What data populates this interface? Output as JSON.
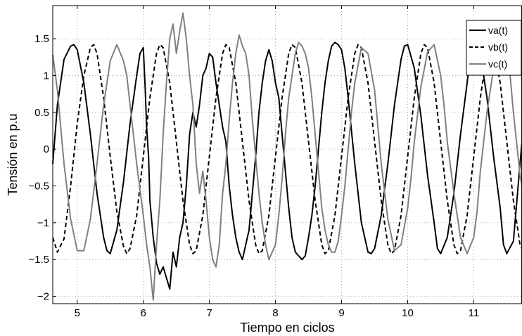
{
  "chart_data": {
    "type": "line",
    "title": "",
    "xlabel": "Tiempo en ciclos",
    "ylabel": "Tensión en p.u",
    "xlim": [
      4.63,
      11.73
    ],
    "ylim": [
      -2.1,
      1.95
    ],
    "xticks": [
      5,
      6,
      7,
      8,
      9,
      10,
      11
    ],
    "xtick_labels": [
      "5",
      "6",
      "7",
      "8",
      "9",
      "10",
      "11"
    ],
    "yticks": [
      -2,
      -1.5,
      -1,
      -0.5,
      0,
      0.5,
      1,
      1.5
    ],
    "ytick_labels": [
      "−2",
      "−1.5",
      "−1",
      "−0.5",
      "0",
      "0.5",
      "1",
      "1.5"
    ],
    "grid": true,
    "legend_position": "top-right",
    "series": [
      {
        "name": "va(t)",
        "color": "#000000",
        "style": "solid",
        "x": [
          4.63,
          4.7,
          4.8,
          4.9,
          4.95,
          5.0,
          5.1,
          5.2,
          5.3,
          5.4,
          5.45,
          5.5,
          5.6,
          5.7,
          5.8,
          5.9,
          5.95,
          6.0,
          6.03,
          6.05,
          6.08,
          6.1,
          6.15,
          6.2,
          6.25,
          6.3,
          6.35,
          6.4,
          6.45,
          6.5,
          6.55,
          6.6,
          6.65,
          6.7,
          6.75,
          6.8,
          6.85,
          6.9,
          6.95,
          7.0,
          7.05,
          7.1,
          7.15,
          7.2,
          7.25,
          7.3,
          7.35,
          7.4,
          7.45,
          7.5,
          7.55,
          7.6,
          7.65,
          7.7,
          7.75,
          7.8,
          7.85,
          7.9,
          7.95,
          8.0,
          8.05,
          8.1,
          8.15,
          8.2,
          8.25,
          8.3,
          8.35,
          8.4,
          8.45,
          8.5,
          8.55,
          8.6,
          8.65,
          8.7,
          8.75,
          8.8,
          8.85,
          8.9,
          8.95,
          9.0,
          9.05,
          9.1,
          9.2,
          9.3,
          9.4,
          9.45,
          9.5,
          9.6,
          9.7,
          9.8,
          9.9,
          9.95,
          10.0,
          10.1,
          10.2,
          10.3,
          10.4,
          10.45,
          10.5,
          10.6,
          10.7,
          10.8,
          10.9,
          10.95,
          11.0,
          11.1,
          11.2,
          11.3,
          11.4,
          11.45,
          11.5,
          11.6,
          11.7,
          11.73
        ],
        "values": [
          -0.2,
          0.6,
          1.22,
          1.4,
          1.42,
          1.35,
          0.9,
          0.2,
          -0.6,
          -1.2,
          -1.38,
          -1.42,
          -1.1,
          -0.45,
          0.35,
          1.0,
          1.3,
          1.38,
          0.8,
          0.3,
          -0.1,
          -0.7,
          -1.2,
          -1.55,
          -1.7,
          -1.6,
          -1.75,
          -1.9,
          -1.4,
          -1.6,
          -1.2,
          -1.0,
          -0.5,
          0.2,
          0.5,
          0.3,
          0.6,
          1.0,
          1.1,
          1.3,
          1.25,
          0.9,
          0.6,
          0.3,
          0.1,
          -0.5,
          -0.9,
          -1.2,
          -1.4,
          -1.5,
          -1.3,
          -1.1,
          -0.6,
          -0.1,
          0.5,
          0.9,
          1.2,
          1.35,
          1.2,
          0.9,
          0.7,
          0.2,
          -0.3,
          -0.8,
          -1.2,
          -1.4,
          -1.45,
          -1.5,
          -1.45,
          -1.2,
          -0.9,
          -0.5,
          0.0,
          0.5,
          0.9,
          1.2,
          1.4,
          1.45,
          1.42,
          1.35,
          1.1,
          0.7,
          -0.2,
          -1.0,
          -1.4,
          -1.42,
          -1.35,
          -0.9,
          -0.2,
          0.6,
          1.22,
          1.4,
          1.42,
          1.1,
          0.45,
          -0.35,
          -1.0,
          -1.35,
          -1.42,
          -1.2,
          -0.6,
          0.2,
          0.9,
          1.3,
          1.42,
          1.3,
          0.7,
          -0.1,
          -0.8,
          -1.3,
          -1.42,
          -1.25,
          -0.2,
          0.1
        ]
      },
      {
        "name": "vb(t)",
        "color": "#000000",
        "style": "dashed",
        "x": [
          4.63,
          4.7,
          4.8,
          4.9,
          5.0,
          5.1,
          5.2,
          5.25,
          5.3,
          5.4,
          5.5,
          5.6,
          5.7,
          5.75,
          5.8,
          5.9,
          6.0,
          6.1,
          6.2,
          6.25,
          6.3,
          6.4,
          6.5,
          6.6,
          6.7,
          6.75,
          6.8,
          6.9,
          7.0,
          7.1,
          7.2,
          7.25,
          7.3,
          7.4,
          7.5,
          7.6,
          7.7,
          7.75,
          7.8,
          7.9,
          8.0,
          8.1,
          8.2,
          8.25,
          8.3,
          8.4,
          8.5,
          8.6,
          8.7,
          8.75,
          8.8,
          8.9,
          9.0,
          9.1,
          9.2,
          9.25,
          9.3,
          9.4,
          9.5,
          9.6,
          9.7,
          9.75,
          9.8,
          9.9,
          10.0,
          10.1,
          10.2,
          10.25,
          10.3,
          10.4,
          10.5,
          10.6,
          10.7,
          10.75,
          10.8,
          10.9,
          11.0,
          11.1,
          11.2,
          11.25,
          11.3,
          11.4,
          11.5,
          11.6,
          11.7,
          11.73
        ],
        "values": [
          -1.2,
          -1.4,
          -1.22,
          -0.5,
          0.35,
          1.0,
          1.38,
          1.42,
          1.3,
          0.7,
          -0.1,
          -0.85,
          -1.32,
          -1.42,
          -1.35,
          -0.9,
          -0.1,
          0.7,
          1.3,
          1.42,
          1.38,
          0.9,
          0.1,
          -0.7,
          -1.3,
          -1.42,
          -1.38,
          -0.9,
          -0.1,
          0.7,
          1.3,
          1.42,
          1.38,
          0.9,
          0.1,
          -0.7,
          -1.3,
          -1.42,
          -1.38,
          -0.9,
          -0.1,
          0.7,
          1.3,
          1.42,
          1.38,
          0.9,
          0.1,
          -0.7,
          -1.3,
          -1.42,
          -1.38,
          -0.9,
          -0.1,
          0.7,
          1.3,
          1.42,
          1.38,
          0.9,
          0.1,
          -0.7,
          -1.3,
          -1.42,
          -1.38,
          -0.9,
          -0.1,
          0.7,
          1.3,
          1.42,
          1.38,
          0.9,
          0.1,
          -0.7,
          -1.3,
          -1.42,
          -1.38,
          -0.9,
          -0.1,
          0.7,
          1.3,
          1.42,
          1.38,
          0.9,
          0.1,
          -0.7,
          -1.3,
          -1.35
        ]
      },
      {
        "name": "vc(t)",
        "color": "#808080",
        "style": "solid",
        "x": [
          4.63,
          4.7,
          4.8,
          4.9,
          5.0,
          5.1,
          5.2,
          5.3,
          5.4,
          5.5,
          5.6,
          5.7,
          5.75,
          5.8,
          5.9,
          6.0,
          6.05,
          6.1,
          6.15,
          6.2,
          6.25,
          6.3,
          6.35,
          6.4,
          6.45,
          6.5,
          6.55,
          6.6,
          6.65,
          6.7,
          6.75,
          6.8,
          6.85,
          6.9,
          6.95,
          7.0,
          7.05,
          7.1,
          7.15,
          7.2,
          7.25,
          7.3,
          7.35,
          7.4,
          7.45,
          7.5,
          7.55,
          7.6,
          7.65,
          7.7,
          7.75,
          7.8,
          7.85,
          7.9,
          7.95,
          8.0,
          8.05,
          8.1,
          8.15,
          8.2,
          8.25,
          8.3,
          8.35,
          8.4,
          8.45,
          8.5,
          8.55,
          8.6,
          8.65,
          8.7,
          8.75,
          8.8,
          8.85,
          8.9,
          8.95,
          9.0,
          9.05,
          9.1,
          9.15,
          9.2,
          9.3,
          9.4,
          9.5,
          9.55,
          9.6,
          9.7,
          9.8,
          9.9,
          10.0,
          10.05,
          10.1,
          10.2,
          10.3,
          10.4,
          10.5,
          10.55,
          10.6,
          10.7,
          10.8,
          10.9,
          11.0,
          11.05,
          11.1,
          11.2,
          11.3,
          11.4,
          11.5,
          11.55,
          11.6,
          11.7,
          11.73
        ],
        "values": [
          1.28,
          0.8,
          -0.2,
          -0.95,
          -1.38,
          -1.38,
          -0.95,
          -0.2,
          0.6,
          1.2,
          1.42,
          1.2,
          1.0,
          0.6,
          -0.2,
          -0.9,
          -1.3,
          -1.6,
          -2.05,
          -1.3,
          -0.7,
          0.2,
          0.9,
          1.5,
          1.7,
          1.3,
          1.6,
          1.85,
          1.5,
          1.0,
          0.6,
          -0.2,
          -0.6,
          -0.3,
          -0.7,
          -1.2,
          -1.5,
          -1.6,
          -1.3,
          -0.6,
          -0.2,
          0.4,
          0.9,
          1.3,
          1.55,
          1.4,
          1.3,
          1.0,
          0.4,
          -0.1,
          -0.6,
          -1.0,
          -1.3,
          -1.5,
          -1.4,
          -1.3,
          -0.9,
          -0.4,
          0.2,
          0.7,
          1.0,
          1.3,
          1.45,
          1.4,
          1.3,
          1.1,
          0.7,
          0.2,
          -0.3,
          -0.8,
          -1.1,
          -1.3,
          -1.4,
          -1.4,
          -1.25,
          -0.9,
          -0.5,
          0.0,
          0.5,
          0.9,
          1.38,
          1.3,
          0.8,
          0.3,
          -0.2,
          -0.95,
          -1.38,
          -1.3,
          -0.8,
          -0.4,
          0.1,
          0.85,
          1.32,
          1.42,
          1.0,
          0.6,
          0.1,
          -0.6,
          -1.2,
          -1.42,
          -1.2,
          -0.85,
          -0.3,
          0.5,
          1.1,
          1.42,
          1.3,
          1.0,
          0.5,
          -0.35,
          -0.5
        ]
      }
    ]
  }
}
